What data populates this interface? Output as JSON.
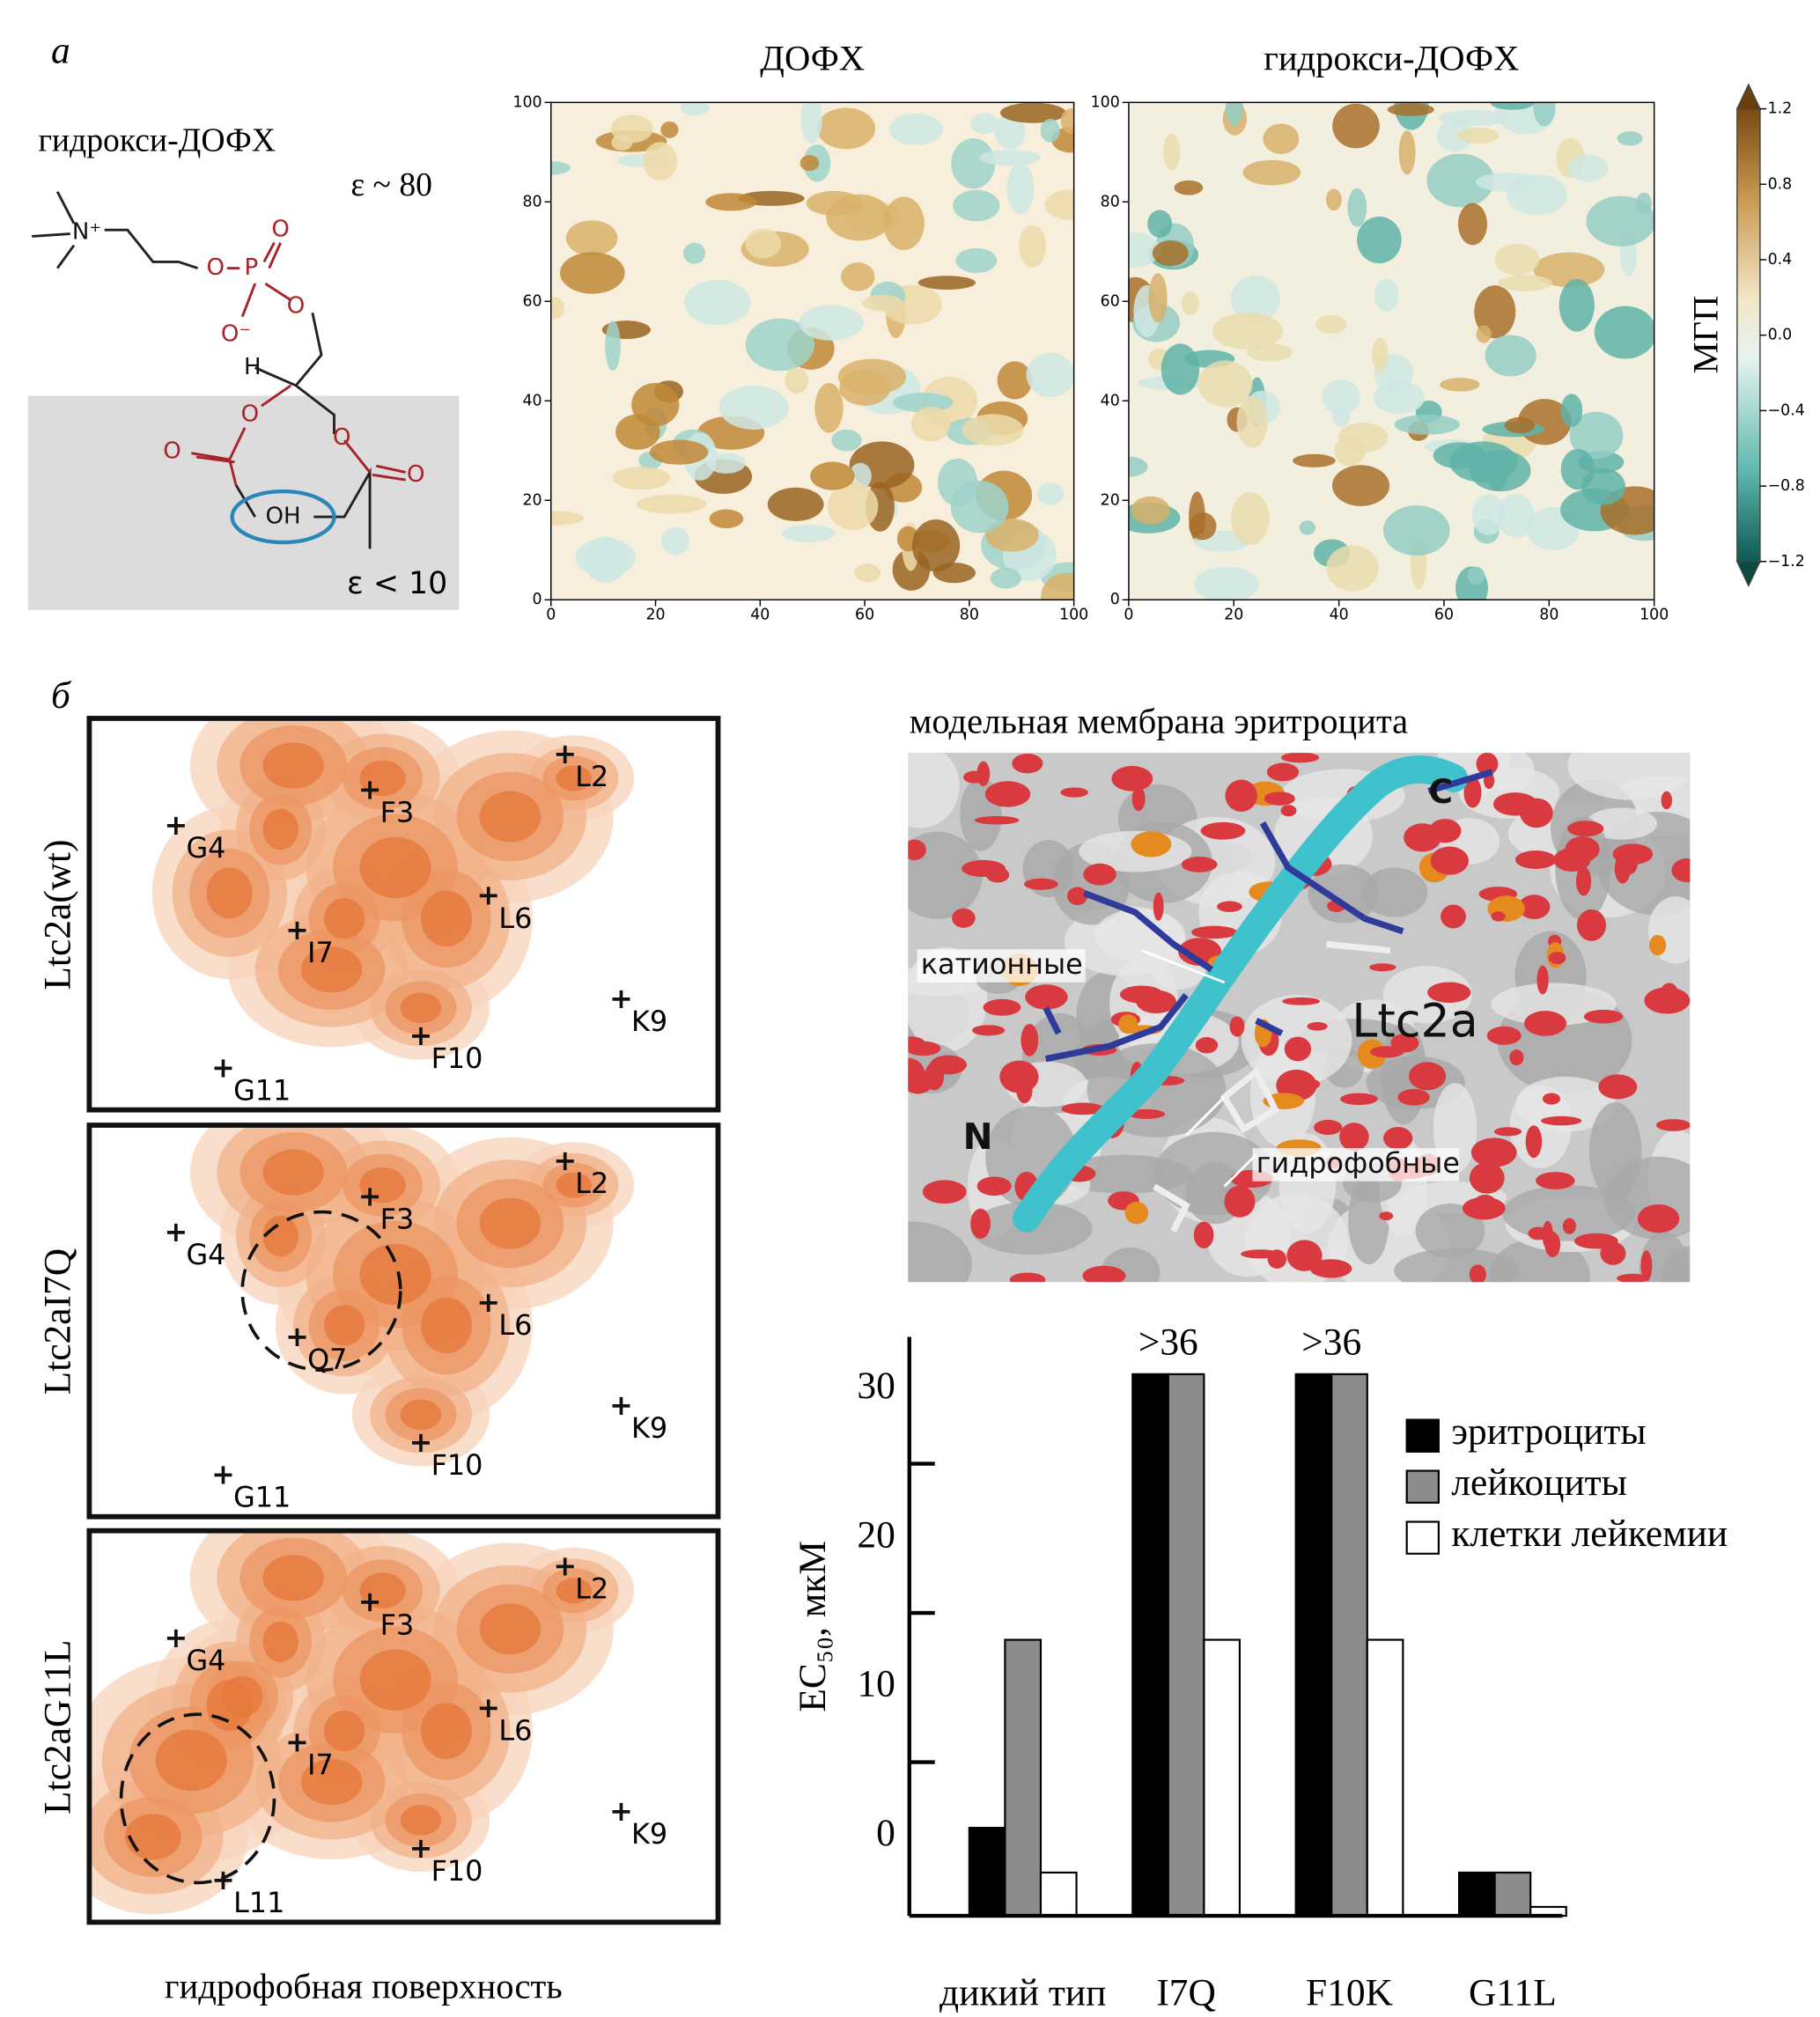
{
  "panel_a": {
    "letter": "а",
    "structure": {
      "title": "гидрокси-ДОФХ",
      "eps_top": "ε ~ 80",
      "eps_bottom": "ε < 10",
      "atoms": [
        "N⁺",
        "O",
        "P",
        "O",
        "O⁻",
        "O",
        "H",
        "O",
        "O",
        "O",
        "O",
        "OH"
      ]
    },
    "heatmaps": {
      "titles": [
        "ДОФХ",
        "гидрокси-ДОФХ"
      ],
      "xlim": [
        0,
        100
      ],
      "ylim": [
        0,
        100
      ],
      "xticks": [
        0,
        20,
        40,
        60,
        80,
        100
      ],
      "yticks": [
        0,
        20,
        40,
        60,
        80,
        100
      ]
    },
    "colorbar": {
      "label": "МГП",
      "lim": [
        -1.2,
        1.2
      ],
      "ticks": [
        1.2,
        0.8,
        0.4,
        {
          "value": 0,
          "label": "0.0"
        },
        {
          "value": -0.4,
          "label": "−0.4"
        },
        {
          "value": -0.8,
          "label": "−0.8"
        },
        {
          "value": -1.2,
          "label": "−1.2"
        }
      ]
    }
  },
  "panel_b": {
    "letter": "б",
    "maps": [
      {
        "name": "Ltc2a(wt)",
        "residues": [
          "L2",
          "F3",
          "G4",
          "L6",
          "I7",
          "K9",
          "F10",
          "G11"
        ]
      },
      {
        "name": "Ltc2aI7Q",
        "residues": [
          "L2",
          "F3",
          "G4",
          "L6",
          "Q7",
          "K9",
          "F10",
          "G11"
        ]
      },
      {
        "name": "Ltc2aG11L",
        "residues": [
          "L2",
          "F3",
          "G4",
          "L6",
          "I7",
          "K9",
          "F10",
          "L11"
        ]
      }
    ],
    "xlabel": "гидрофобная поверхность",
    "structure": {
      "title": "модельная мембрана эритроцита",
      "labels": [
        "катионные",
        "Ltc2a",
        "N",
        "C",
        "гидрофобные"
      ]
    }
  },
  "chart_data": {
    "type": "bar",
    "ylabel": "EC₅₀, мкМ",
    "categories": [
      "дикий тип",
      "I7Q",
      "F10K",
      "G11L"
    ],
    "series": [
      {
        "name": "эритроциты",
        "color": "#000000",
        "values": [
          0.6,
          31,
          31,
          -2.4
        ]
      },
      {
        "name": "лейкоциты",
        "color": "#8c8c8c",
        "values": [
          13.2,
          31,
          31,
          -2.4
        ]
      },
      {
        "name": "клетки лейкемии",
        "color": "#ffffff",
        "values": [
          -2.4,
          13.2,
          13.2,
          -4.7
        ]
      }
    ],
    "ylim": [
      -5.3,
      33.5
    ],
    "yticks": [
      0,
      10,
      20,
      30
    ],
    "yminorticks": [
      5,
      15,
      25
    ],
    "annotations": [
      {
        "text": ">36",
        "category": "I7Q"
      },
      {
        "text": ">36",
        "category": "F10K"
      }
    ],
    "legend": "upper right"
  }
}
